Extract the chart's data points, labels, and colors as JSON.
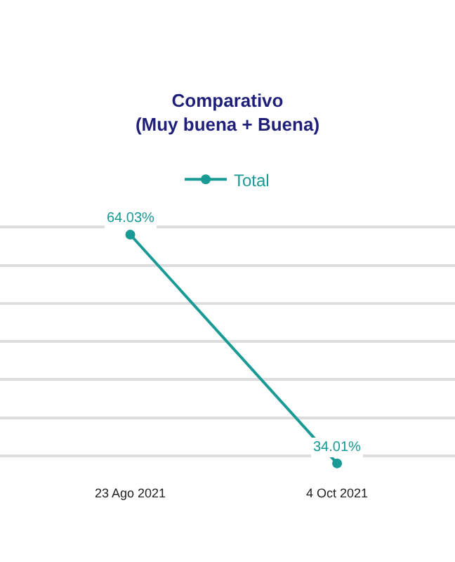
{
  "chart_data": {
    "type": "line",
    "title": "Comparativo",
    "subtitle": "(Muy buena + Buena)",
    "categories": [
      "23 Ago 2021",
      "4 Oct 2021"
    ],
    "series": [
      {
        "name": "Total",
        "color": "#1a9a94",
        "values": [
          64.03,
          34.01
        ],
        "value_labels": [
          "64.03%",
          "34.01%"
        ]
      }
    ],
    "tick_labels": "x",
    "grid": "y",
    "legend": "top",
    "marker": "circle",
    "line_style": "solid"
  }
}
